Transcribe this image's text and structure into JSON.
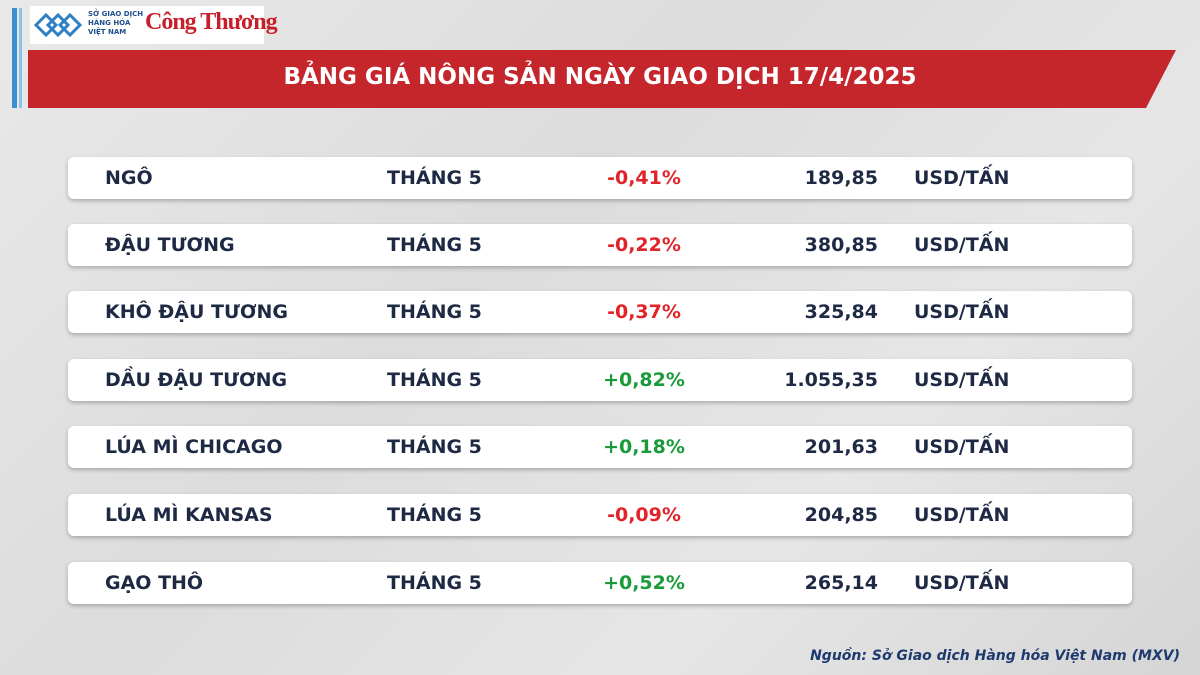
{
  "header": {
    "logo_lines": [
      "SỞ GIAO DỊCH",
      "HÀNG HÓA",
      "VIỆT NAM"
    ],
    "brand": "Công Thương",
    "title": "BẢNG GIÁ NÔNG SẢN NGÀY GIAO DỊCH 17/4/2025"
  },
  "table": {
    "rows": [
      [
        "NGÔ",
        "THÁNG 5",
        "-0,41%",
        "189,85",
        "USD/TẤN"
      ],
      [
        "ĐẬU TƯƠNG",
        "THÁNG 5",
        "-0,22%",
        "380,85",
        "USD/TẤN"
      ],
      [
        "KHÔ ĐẬU TƯƠNG",
        "THÁNG 5",
        "-0,37%",
        "325,84",
        "USD/TẤN"
      ],
      [
        "DẦU ĐẬU TƯƠNG",
        "THÁNG 5",
        "+0,82%",
        "1.055,35",
        "USD/TẤN"
      ],
      [
        "LÚA MÌ CHICAGO",
        "THÁNG 5",
        "+0,18%",
        "201,63",
        "USD/TẤN"
      ],
      [
        "LÚA MÌ KANSAS",
        "THÁNG 5",
        "-0,09%",
        "204,85",
        "USD/TẤN"
      ],
      [
        "GẠO THÔ",
        "THÁNG 5",
        "+0,52%",
        "265,14",
        "USD/TẤN"
      ]
    ]
  },
  "footer": {
    "source": "Nguồn: Sở Giao dịch Hàng hóa Việt Nam (MXV)"
  }
}
